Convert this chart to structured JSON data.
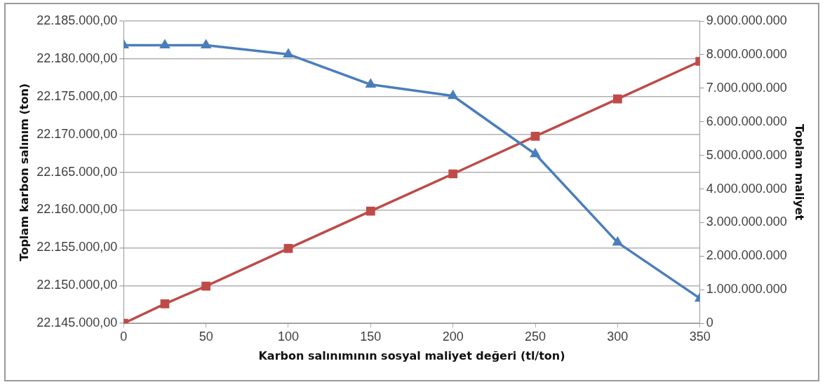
{
  "chart_data": {
    "type": "line",
    "xlabel": "Karbon salınımının sosyal maliyet değeri (tl/ton)",
    "ylabel": "Toplam karbon salınım (ton)",
    "y2label": "Toplam maliyet",
    "x": [
      0,
      25,
      50,
      100,
      150,
      200,
      250,
      300,
      350
    ],
    "series": [
      {
        "color": "#4a7ebb",
        "marker": "triangle",
        "values": [
          22181800,
          22181800,
          22181800,
          22180600,
          22176600,
          22175100,
          22167400,
          22155700,
          22148300
        ]
      },
      {
        "color": "#be4b48",
        "marker": "square",
        "axis": "y2",
        "values": [
          0,
          580000000,
          1110000000,
          2230000000,
          3340000000,
          4450000000,
          5570000000,
          6680000000,
          7800000000
        ]
      }
    ],
    "xlim": [
      0,
      350
    ],
    "xticks": [
      0,
      50,
      100,
      150,
      200,
      250,
      300,
      350
    ],
    "ylim": [
      22145000,
      22185000
    ],
    "yticks": [
      {
        "value": 22145000,
        "label": "22.145.000,00"
      },
      {
        "value": 22150000,
        "label": "22.150.000,00"
      },
      {
        "value": 22155000,
        "label": "22.155.000,00"
      },
      {
        "value": 22160000,
        "label": "22.160.000,00"
      },
      {
        "value": 22165000,
        "label": "22.165.000,00"
      },
      {
        "value": 22170000,
        "label": "22.170.000,00"
      },
      {
        "value": 22175000,
        "label": "22.175.000,00"
      },
      {
        "value": 22180000,
        "label": "22.180.000,00"
      },
      {
        "value": 22185000,
        "label": "22.185.000,00"
      }
    ],
    "y2lim": [
      0,
      9000000000
    ],
    "y2ticks": [
      0,
      {
        "value": 1000000000,
        "label": "1.000.000.000"
      },
      {
        "value": 2000000000,
        "label": "2.000.000.000"
      },
      {
        "value": 3000000000,
        "label": "3.000.000.000"
      },
      {
        "value": 4000000000,
        "label": "4.000.000.000"
      },
      {
        "value": 5000000000,
        "label": "5.000.000.000"
      },
      {
        "value": 6000000000,
        "label": "6.000.000.000"
      },
      {
        "value": 7000000000,
        "label": "7.000.000.000"
      },
      {
        "value": 8000000000,
        "label": "8.000.000.000"
      },
      {
        "value": 9000000000,
        "label": "9.000.000.000"
      }
    ],
    "grid": "y",
    "legend": false,
    "line_style": "solid"
  }
}
